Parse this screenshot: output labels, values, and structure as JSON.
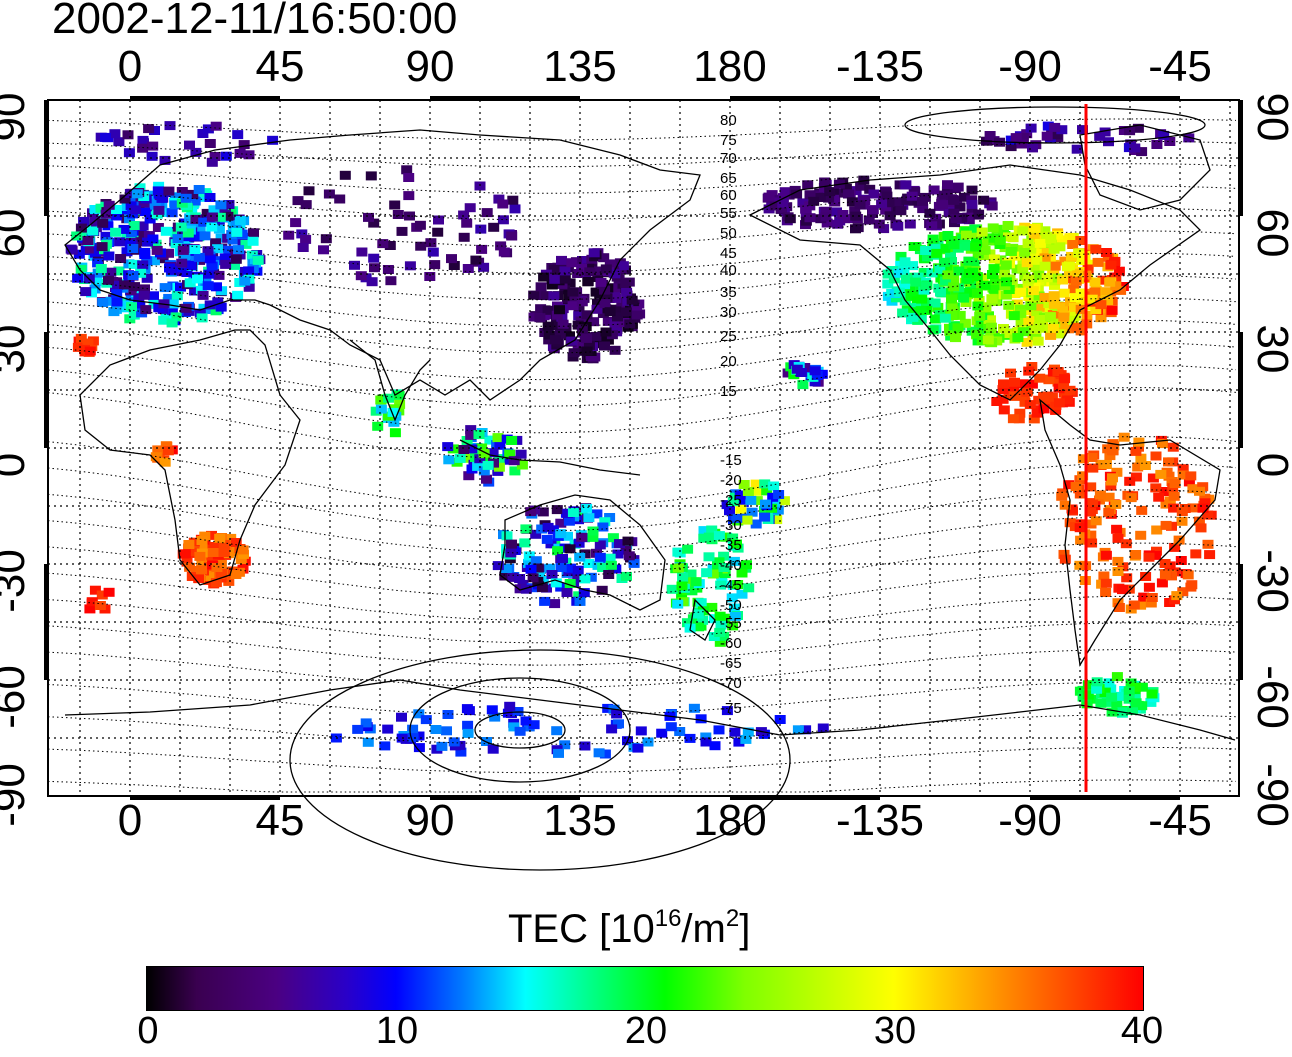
{
  "title": "2002-12-11/16:50:00",
  "map": {
    "top_axis_labels": [
      "0",
      "45",
      "90",
      "135",
      "180",
      "-135",
      "-90",
      "-45"
    ],
    "bottom_axis_labels": [
      "0",
      "45",
      "90",
      "135",
      "180",
      "-135",
      "-90",
      "-45"
    ],
    "left_axis_labels": [
      "90",
      "60",
      "30",
      "0",
      "-30",
      "-60",
      "-90"
    ],
    "right_axis_labels": [
      "90",
      "60",
      "30",
      "0",
      "-30",
      "-60",
      "-90"
    ],
    "contour_labels_north": [
      "80",
      "75",
      "70",
      "65",
      "60",
      "55",
      "50",
      "45",
      "40",
      "35",
      "30",
      "25",
      "20",
      "15"
    ],
    "contour_labels_south": [
      "-15",
      "-20",
      "-25",
      "-30",
      "-35",
      "-40",
      "-45",
      "-50",
      "-55",
      "-60",
      "-65",
      "-70",
      "-75"
    ],
    "marker_line_color": "#ff0000"
  },
  "colorbar": {
    "title_main": "TEC  [10",
    "title_sup1": "16",
    "title_mid": "/m",
    "title_sup2": "2",
    "title_end": "]",
    "tick_labels": [
      "0",
      "10",
      "20",
      "30",
      "40"
    ],
    "min": 0,
    "max": 40,
    "colors": [
      "#000000",
      "#4b0082",
      "#0000ff",
      "#00ffff",
      "#00ff00",
      "#ffff00",
      "#ff0000"
    ]
  }
}
